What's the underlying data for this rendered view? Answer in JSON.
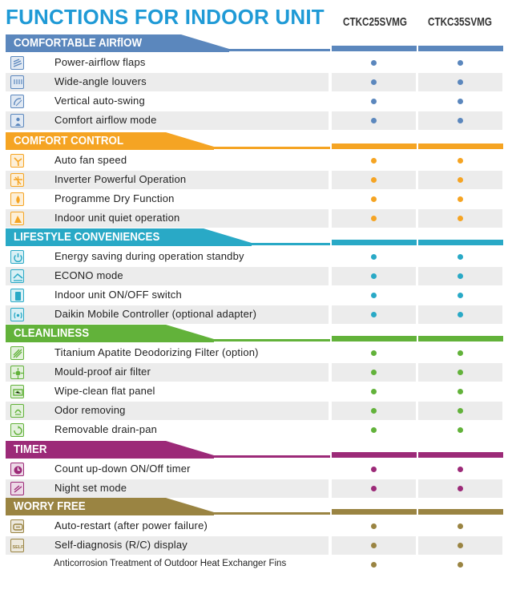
{
  "title": "FUNCTIONS FOR INDOOR UNIT",
  "models": [
    "CTKC25SVMG",
    "CTKC35SVMG"
  ],
  "colors": {
    "title": "#1f9ad6"
  },
  "sections": [
    {
      "name": "COMFORTABLE AIRflOW",
      "color": "#5b87bd",
      "items": [
        {
          "label": "Power-airflow flaps",
          "icon": "power-airflow-icon"
        },
        {
          "label": "Wide-angle louvers",
          "icon": "wide-angle-louver-icon"
        },
        {
          "label": "Vertical auto-swing",
          "icon": "auto-swing-icon"
        },
        {
          "label": "Comfort airflow mode",
          "icon": "comfort-airflow-icon"
        }
      ]
    },
    {
      "name": "COMFORT CONTROL",
      "color": "#f5a423",
      "items": [
        {
          "label": "Auto fan speed",
          "icon": "auto-fan-icon"
        },
        {
          "label": "Inverter Powerful Operation",
          "icon": "powerful-operation-icon"
        },
        {
          "label": "Programme Dry Function",
          "icon": "dry-function-icon"
        },
        {
          "label": "Indoor unit quiet operation",
          "icon": "quiet-operation-icon"
        }
      ]
    },
    {
      "name": "LIFESTYLE CONVENIENCES",
      "color": "#29a9c6",
      "items": [
        {
          "label": "Energy saving during operation standby",
          "icon": "standby-power-icon"
        },
        {
          "label": "ECONO mode",
          "icon": "econo-icon"
        },
        {
          "label": "Indoor unit ON/OFF switch",
          "icon": "on-off-switch-icon"
        },
        {
          "label": "Daikin Mobile Controller (optional adapter)",
          "icon": "mobile-controller-icon"
        }
      ]
    },
    {
      "name": "CLEANLINESS",
      "color": "#62b23a",
      "items": [
        {
          "label": "Titanium Apatite Deodorizing Filter (option)",
          "icon": "apatite-filter-icon"
        },
        {
          "label": "Mould-proof air filter",
          "icon": "mould-proof-filter-icon"
        },
        {
          "label": "Wipe-clean flat panel",
          "icon": "flat-panel-icon"
        },
        {
          "label": "Odor removing",
          "icon": "odor-removing-icon"
        },
        {
          "label": "Removable drain-pan",
          "icon": "drain-pan-icon"
        }
      ]
    },
    {
      "name": "TIMER",
      "color": "#9c2a78",
      "items": [
        {
          "label": "Count up-down ON/Off timer",
          "icon": "timer-icon"
        },
        {
          "label": "Night set mode",
          "icon": "night-set-icon"
        }
      ]
    },
    {
      "name": "WORRY FREE",
      "color": "#9a8442",
      "items": [
        {
          "label": "Auto-restart (after power failure)",
          "icon": "auto-restart-icon"
        },
        {
          "label": "Self-diagnosis (R/C) display",
          "icon": "self-diagnosis-icon",
          "icon_text": "SELF"
        },
        {
          "label": "Anticorrosion Treatment of Outdoor Heat Exchanger Fins",
          "icon": ""
        }
      ]
    }
  ]
}
